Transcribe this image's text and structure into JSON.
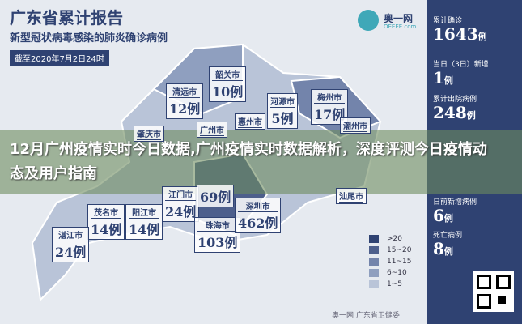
{
  "header": {
    "title": "广东省累计报告",
    "subtitle": "新型冠状病毒感染的肺炎确诊病例",
    "date": "截至2020年7月2日24时"
  },
  "logo": {
    "name": "奥一网",
    "domain": "OEEEE.com"
  },
  "stats": [
    {
      "label": "累计确诊",
      "value": "1643",
      "unit": "例"
    },
    {
      "label": "当日（3日）新增",
      "value": "1",
      "unit": "例"
    },
    {
      "label": "累计出院病例",
      "value": "248",
      "unit": "例"
    },
    {
      "label": "日前新增病例",
      "value": "6",
      "unit": "例"
    },
    {
      "label": "死亡病例",
      "value": "8",
      "unit": "例"
    }
  ],
  "overlay_title": "12月广州疫情实时今日数据,广州疫情实时数据解析，深度评测今日疫情动态及用户指南",
  "cities": [
    {
      "name": "韶关市",
      "count": "10例"
    },
    {
      "name": "清远市",
      "count": "12例"
    },
    {
      "name": "河源市",
      "count": "5例"
    },
    {
      "name": "梅州市",
      "count": "17例"
    },
    {
      "name": "惠州市"
    },
    {
      "name": "广州市"
    },
    {
      "name": "潮州市"
    },
    {
      "name": "肇庆市"
    },
    {
      "name": "江门市",
      "count": "24例"
    },
    {
      "count": "69例"
    },
    {
      "name": "茂名市",
      "count": "14例"
    },
    {
      "name": "阳江市",
      "count": "14例"
    },
    {
      "name": "湛江市",
      "count": "24例"
    },
    {
      "name": "珠海市",
      "count": "103例"
    },
    {
      "name": "深圳市",
      "count": "462例"
    },
    {
      "name": "汕尾市"
    }
  ],
  "legend": [
    ">20",
    "15~20",
    "11~15",
    "6~10",
    "1~5"
  ],
  "footer": "奥一网 广东省卫健委"
}
